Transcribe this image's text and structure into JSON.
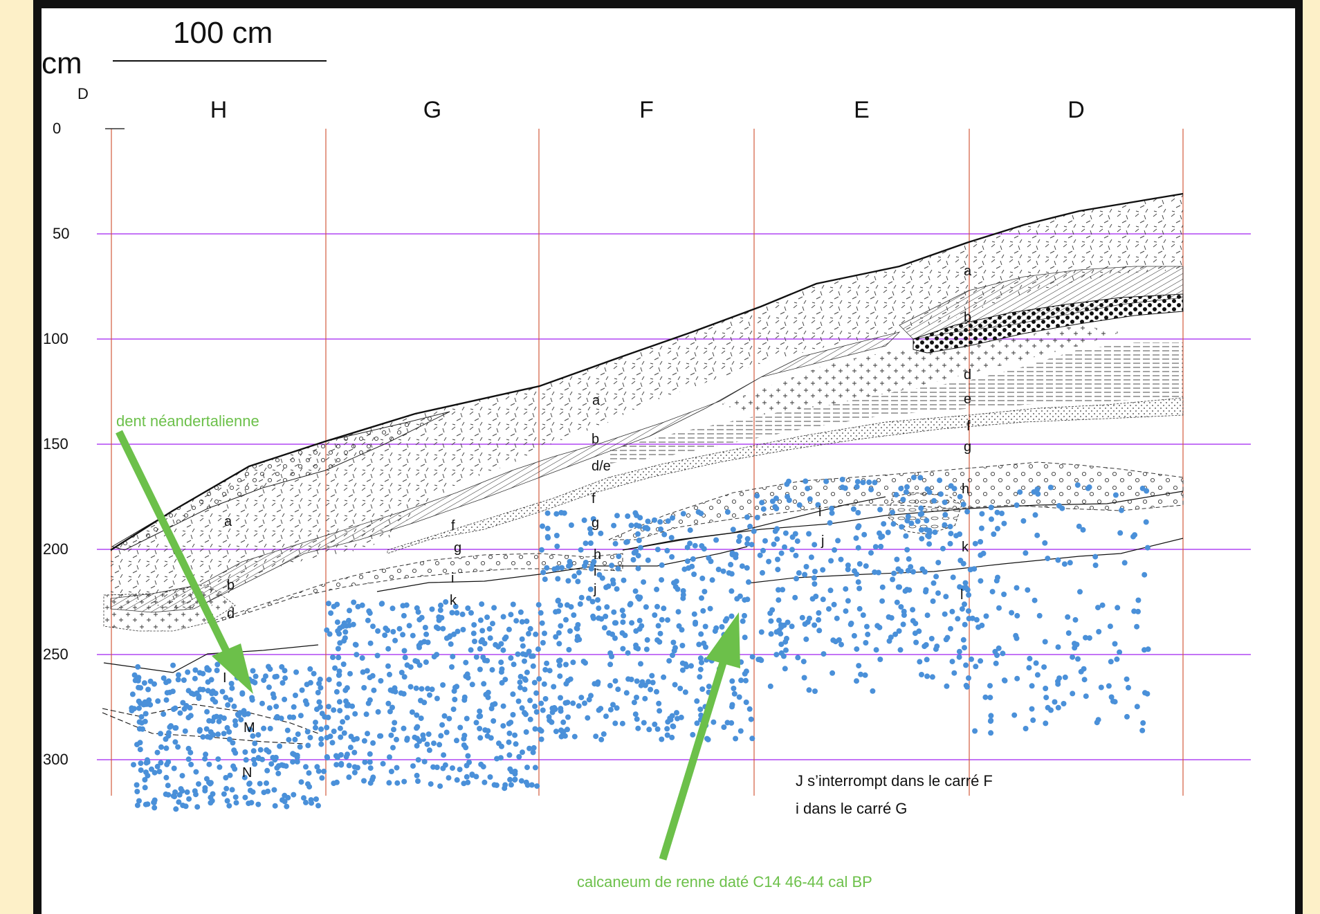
{
  "scale_bar": {
    "label": "100 cm"
  },
  "axis": {
    "unit_label": "cm",
    "origin_marker": "D",
    "depth_ticks": [
      {
        "value": 0,
        "label": "0"
      },
      {
        "value": 50,
        "label": "50"
      },
      {
        "value": 100,
        "label": "100"
      },
      {
        "value": 150,
        "label": "150"
      },
      {
        "value": 200,
        "label": "200"
      },
      {
        "value": 250,
        "label": "250"
      },
      {
        "value": 300,
        "label": "300"
      }
    ]
  },
  "squares": [
    "H",
    "G",
    "F",
    "E",
    "D"
  ],
  "layer_labels": {
    "H": [
      "a",
      "b",
      "d",
      "I",
      "M",
      "N"
    ],
    "G": [
      "f",
      "g",
      "i",
      "k"
    ],
    "F": [
      "a",
      "b",
      "d/e",
      "f",
      "g",
      "h",
      "i",
      "j"
    ],
    "E": [
      "i",
      "j"
    ],
    "D": [
      "a",
      "b",
      "d",
      "e",
      "f",
      "g",
      "h",
      "k",
      "l"
    ]
  },
  "annotations": {
    "tooth": "dent néandertalienne",
    "calcaneum": "calcaneum de renne daté C14 46-44 cal BP",
    "note_line1": "J s’interrompt dans le carré F",
    "note_line2": "i dans le carré G"
  },
  "colors": {
    "find_dots": "#4a90d9",
    "square_lines": "#d25a3c",
    "depth_lines": "#a020f0",
    "annotation_arrows": "#6cc04a",
    "frame": "#111111",
    "background": "#fdf0c8"
  }
}
